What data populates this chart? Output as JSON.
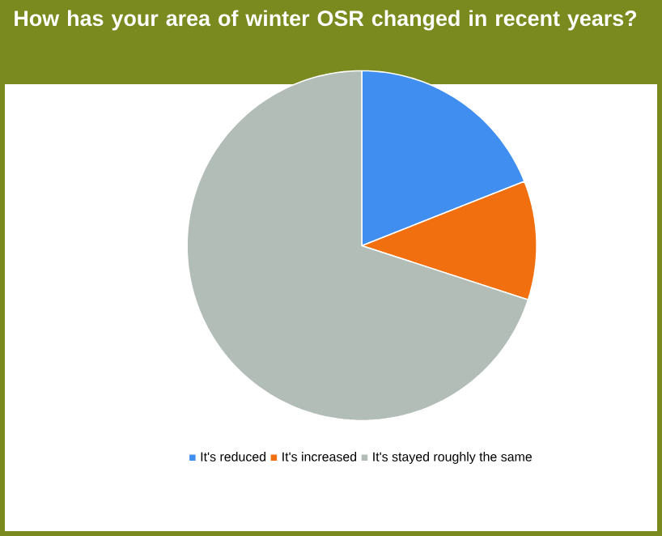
{
  "chart_data": {
    "type": "pie",
    "title": "How has your area of winter OSR changed in recent years?",
    "categories": [
      "It's reduced",
      "It's increased",
      "It's stayed roughly the same"
    ],
    "values": [
      19,
      11,
      70
    ],
    "colors": [
      "#3f8ef0",
      "#f26f10",
      "#b2bdb8"
    ],
    "legend": "bottom"
  }
}
